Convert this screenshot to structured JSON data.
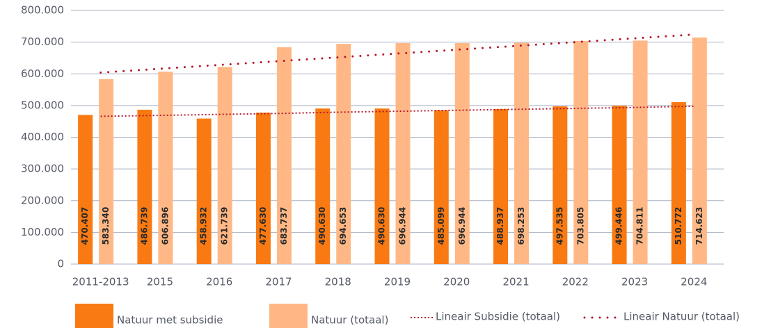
{
  "chart_data": {
    "type": "bar",
    "categories": [
      "2011-2013",
      "2015",
      "2016",
      "2017",
      "2018",
      "2019",
      "2020",
      "2021",
      "2022",
      "2023",
      "2024"
    ],
    "series": [
      {
        "name": "Natuur met subsidie",
        "color": "#f97a12",
        "type": "bar",
        "values": [
          470407,
          486739,
          458932,
          477630,
          490630,
          490630,
          485099,
          488937,
          497535,
          499446,
          510772
        ],
        "value_labels": [
          "470.407",
          "486.739",
          "458.932",
          "477.630",
          "490.630",
          "490.630",
          "485.099",
          "488.937",
          "497.535",
          "499.446",
          "510.772"
        ]
      },
      {
        "name": "Natuur (totaal)",
        "color": "#ffb885",
        "type": "bar",
        "values": [
          583340,
          606896,
          621739,
          683737,
          694653,
          696944,
          696944,
          698253,
          703805,
          704811,
          714623
        ],
        "value_labels": [
          "583.340",
          "606.896",
          "621.739",
          "683.737",
          "694.653",
          "696.944",
          "696.944",
          "698.253",
          "703.805",
          "704.811",
          "714.623"
        ]
      },
      {
        "name": "Lineair Subsidie (totaal)",
        "color": "#b3152b",
        "type": "line",
        "dash": "fine",
        "values": [
          466000,
          469000,
          472000,
          475000,
          479000,
          482000,
          485000,
          488000,
          491000,
          494000,
          498000
        ]
      },
      {
        "name": "Lineair Natuur (totaal)",
        "color": "#b3152b",
        "type": "line",
        "dash": "coarse",
        "values": [
          604000,
          616000,
          628000,
          640000,
          652000,
          664000,
          676000,
          688000,
          700000,
          712000,
          724000
        ]
      }
    ],
    "ylim": [
      0,
      800000
    ],
    "yticks": [
      0,
      {
        "value": 100000,
        "label": "100.000"
      },
      {
        "value": 200000,
        "label": "200.000"
      },
      {
        "value": 300000,
        "label": "300.000"
      },
      {
        "value": 400000,
        "label": "400.000"
      },
      {
        "value": 500000,
        "label": "500.000"
      },
      {
        "value": 600000,
        "label": "600.000"
      },
      {
        "value": 700000,
        "label": "700.000"
      },
      {
        "value": 800000,
        "label": "800.000"
      }
    ],
    "grid": true,
    "legend": "bottom"
  }
}
